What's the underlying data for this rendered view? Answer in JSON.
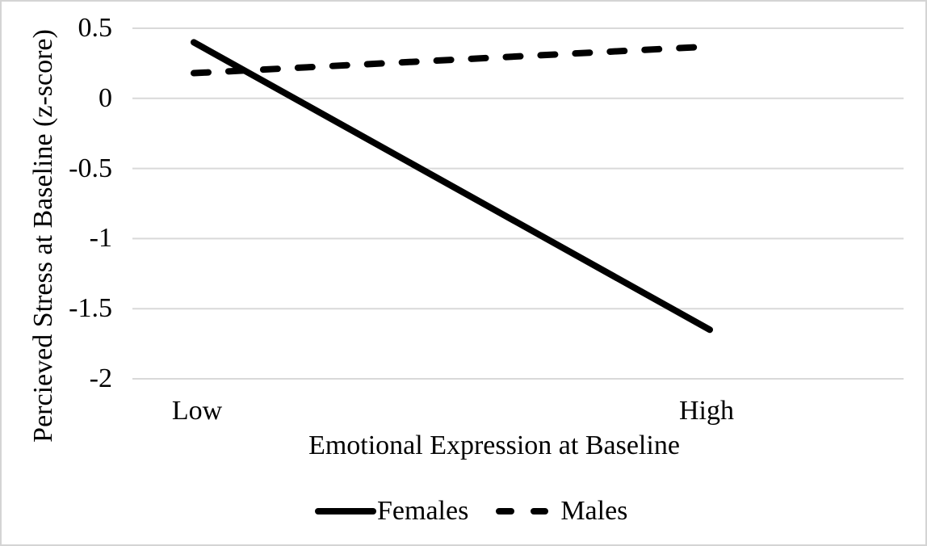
{
  "chart_data": {
    "type": "line",
    "categories": [
      "Low",
      "High"
    ],
    "series": [
      {
        "name": "Females",
        "style": "solid",
        "values": [
          0.4,
          -1.65
        ]
      },
      {
        "name": "Males",
        "style": "dashed",
        "values": [
          0.18,
          0.37
        ]
      }
    ],
    "xlabel": "Emotional Expression at Baseline",
    "ylabel": "Percieved Stress at Baseline (z-score)",
    "ylim": [
      -2,
      0.5
    ],
    "yticks": [
      {
        "value": 0.5,
        "label": "0.5"
      },
      {
        "value": 0,
        "label": "0"
      },
      {
        "value": -0.5,
        "label": "-0.5"
      },
      {
        "value": -1,
        "label": "-1"
      },
      {
        "value": -1.5,
        "label": "-1.5"
      },
      {
        "value": -2,
        "label": "-2"
      }
    ],
    "grid": "horizontal",
    "legend_position": "bottom",
    "colors": {
      "line": "#000000",
      "text": "#000000",
      "gridline": "#d9d9d9",
      "frame_border": "#d4d4d4",
      "background": "#ffffff"
    }
  }
}
